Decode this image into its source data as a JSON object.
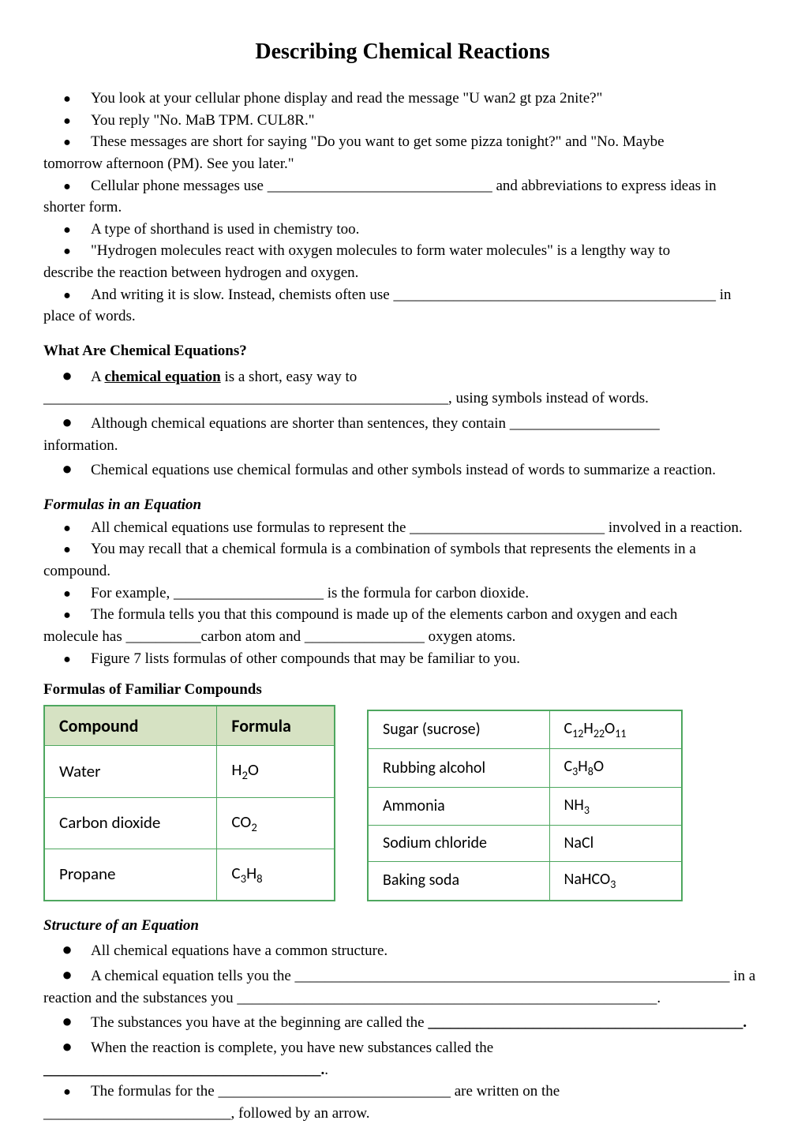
{
  "title": "Describing Chemical Reactions",
  "intro_bullets": [
    "You look at your cellular phone display and read the message \"U wan2 gt pza 2nite?\"",
    "You reply \"No. MaB TPM. CUL8R.\"",
    "These messages are short for saying \"Do you want to get some pizza tonight?\" and \"No. Maybe",
    "Cellular phone messages use ______________________________ and abbreviations to express ideas in",
    "A type of shorthand is used in chemistry too.",
    "\"Hydrogen molecules react with oxygen molecules to form water molecules\" is a lengthy way to",
    "And writing it is slow. Instead, chemists often use ___________________________________________ in"
  ],
  "intro_cont": {
    "2": "tomorrow afternoon (PM). See you later.\"",
    "3": "shorter form.",
    "5": "describe the reaction between hydrogen and oxygen.",
    "6": "place of words."
  },
  "sec1": {
    "heading": "What Are Chemical Equations?",
    "b1a": "A ",
    "b1b": "chemical equation",
    "b1c": " is a short, easy way to",
    "cont1": "______________________________________________________, using symbols instead of words.",
    "b2": "Although chemical equations are shorter than sentences, they contain ____________________",
    "cont2": "information.",
    "b3": "Chemical equations use chemical formulas and other symbols instead of words to summarize a reaction."
  },
  "sec2": {
    "heading": "Formulas in an Equation",
    "b1": "All chemical equations use formulas to represent the __________________________ involved in a reaction.",
    "b2": "You may recall that a chemical formula is a combination of symbols that represents the elements in a",
    "cont2": "compound.",
    "b3": "For example, ____________________ is the formula for carbon dioxide.",
    "b4": "The formula tells you that this compound is made up of the elements carbon and oxygen and each",
    "cont4": "molecule has __________carbon atom and ________________ oxygen atoms.",
    "b5": "Figure 7 lists formulas of other compounds that may be familiar to you."
  },
  "tables": {
    "heading": "Formulas of Familiar Compounds",
    "left": {
      "headers": [
        "Compound",
        "Formula"
      ],
      "rows": [
        {
          "c": "Water",
          "f_html": "H<sub>2</sub>O"
        },
        {
          "c": "Carbon dioxide",
          "f_html": "CO<sub>2</sub>"
        },
        {
          "c": "Propane",
          "f_html": "C<sub>3</sub>H<sub>8</sub>"
        }
      ]
    },
    "right": {
      "rows": [
        {
          "c": "Sugar (sucrose)",
          "f_html": "C<sub>12</sub>H<sub>22</sub>O<sub>11</sub>"
        },
        {
          "c": "Rubbing alcohol",
          "f_html": "C<sub>3</sub>H<sub>8</sub>O"
        },
        {
          "c": "Ammonia",
          "f_html": "NH<sub>3</sub>"
        },
        {
          "c": "Sodium chloride",
          "f_html": "NaCl"
        },
        {
          "c": "Baking soda",
          "f_html": "NaHCO<sub>3</sub>"
        }
      ]
    }
  },
  "sec3": {
    "heading": "Structure of an Equation",
    "b1": "All chemical equations have a common structure.",
    "b2": "A chemical equation tells you the __________________________________________________________ in a",
    "cont2": "reaction and the substances you ________________________________________________________.",
    "b3a": "The substances you have at the beginning are called the ",
    "b3b": "__________________________________________.",
    "b4": "When the reaction is complete, you have new substances called the",
    "cont4a": "_____________________________________.",
    "cont4b": ".",
    "b5": "The formulas for the _______________________________ are written on the",
    "cont5": "_________________________, followed by an arrow."
  },
  "colors": {
    "table_border": "#4ea75f",
    "table_header_bg": "#d6e2c3",
    "text": "#000000",
    "background": "#ffffff"
  }
}
